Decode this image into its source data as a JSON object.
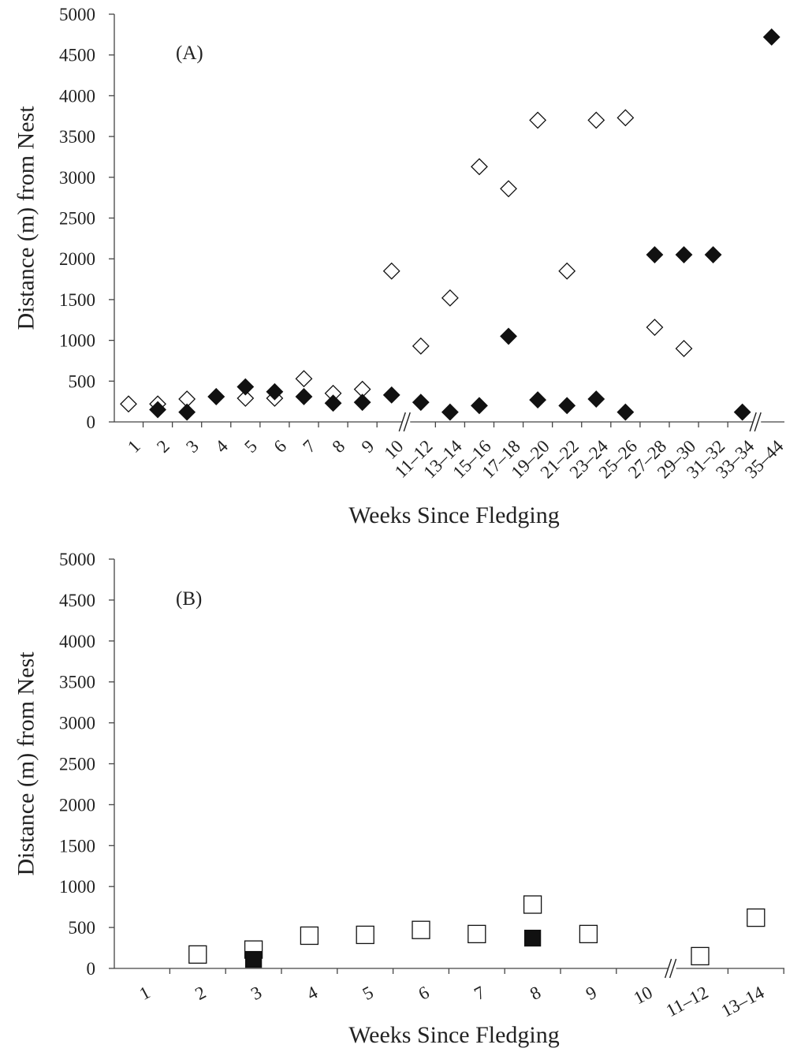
{
  "chart_data": [
    {
      "type": "scatter",
      "panel_label": "(A)",
      "ylabel": "Distance (m) from Nest",
      "xlabel": "Weeks Since Fledging",
      "ylim": [
        0,
        5000
      ],
      "yticks": [
        "0",
        "500",
        "1000",
        "1500",
        "2000",
        "2500",
        "3000",
        "3500",
        "4000",
        "4500",
        "5000"
      ],
      "categories": [
        "1",
        "2",
        "3",
        "4",
        "5",
        "6",
        "7",
        "8",
        "9",
        "10",
        "11–12",
        "13–14",
        "15–16",
        "17–18",
        "19–20",
        "21–22",
        "23–24",
        "25–26",
        "27–28",
        "29–30",
        "31–32",
        "33–34",
        "35–44"
      ],
      "axis_breaks_after": [
        "10",
        "33–34"
      ],
      "marker": "diamond",
      "grid": false,
      "series": [
        {
          "style": "open",
          "color": "#ffffff",
          "points": [
            [
              "1",
              220
            ],
            [
              "2",
              220
            ],
            [
              "3",
              280
            ],
            [
              "4",
              310
            ],
            [
              "5",
              290
            ],
            [
              "6",
              290
            ],
            [
              "7",
              530
            ],
            [
              "8",
              350
            ],
            [
              "9",
              400
            ],
            [
              "10",
              1850
            ],
            [
              "11–12",
              930
            ],
            [
              "13–14",
              1520
            ],
            [
              "15–16",
              3130
            ],
            [
              "17–18",
              2860
            ],
            [
              "19–20",
              3700
            ],
            [
              "21–22",
              1850
            ],
            [
              "23–24",
              3700
            ],
            [
              "25–26",
              3730
            ],
            [
              "27–28",
              1160
            ],
            [
              "29–30",
              900
            ]
          ]
        },
        {
          "style": "filled",
          "color": "#000000",
          "points": [
            [
              "2",
              150
            ],
            [
              "3",
              120
            ],
            [
              "4",
              310
            ],
            [
              "5",
              430
            ],
            [
              "6",
              370
            ],
            [
              "7",
              310
            ],
            [
              "8",
              230
            ],
            [
              "9",
              240
            ],
            [
              "10",
              330
            ],
            [
              "11–12",
              240
            ],
            [
              "13–14",
              120
            ],
            [
              "15–16",
              200
            ],
            [
              "17–18",
              1050
            ],
            [
              "19–20",
              270
            ],
            [
              "21–22",
              200
            ],
            [
              "23–24",
              280
            ],
            [
              "25–26",
              120
            ],
            [
              "27–28",
              2050
            ],
            [
              "29–30",
              2050
            ],
            [
              "31–32",
              2050
            ],
            [
              "33–34",
              120
            ],
            [
              "35–44",
              4720
            ]
          ]
        }
      ]
    },
    {
      "type": "scatter",
      "panel_label": "(B)",
      "ylabel": "Distance (m) from Nest",
      "xlabel": "Weeks Since Fledging",
      "ylim": [
        0,
        5000
      ],
      "yticks": [
        "0",
        "500",
        "1000",
        "1500",
        "2000",
        "2500",
        "3000",
        "3500",
        "4000",
        "4500",
        "5000"
      ],
      "categories": [
        "1",
        "2",
        "3",
        "4",
        "5",
        "6",
        "7",
        "8",
        "9",
        "10",
        "11–12",
        "13–14"
      ],
      "axis_breaks_after": [
        "10"
      ],
      "marker": "square",
      "grid": false,
      "series": [
        {
          "style": "open",
          "color": "#ffffff",
          "points": [
            [
              "2",
              170
            ],
            [
              "3",
              230
            ],
            [
              "4",
              400
            ],
            [
              "5",
              410
            ],
            [
              "6",
              470
            ],
            [
              "7",
              420
            ],
            [
              "8",
              780
            ],
            [
              "9",
              420
            ],
            [
              "11–12",
              150
            ],
            [
              "13–14",
              620
            ]
          ]
        },
        {
          "style": "filled",
          "color": "#000000",
          "points": [
            [
              "3",
              110
            ],
            [
              "8",
              370
            ]
          ]
        }
      ]
    }
  ]
}
